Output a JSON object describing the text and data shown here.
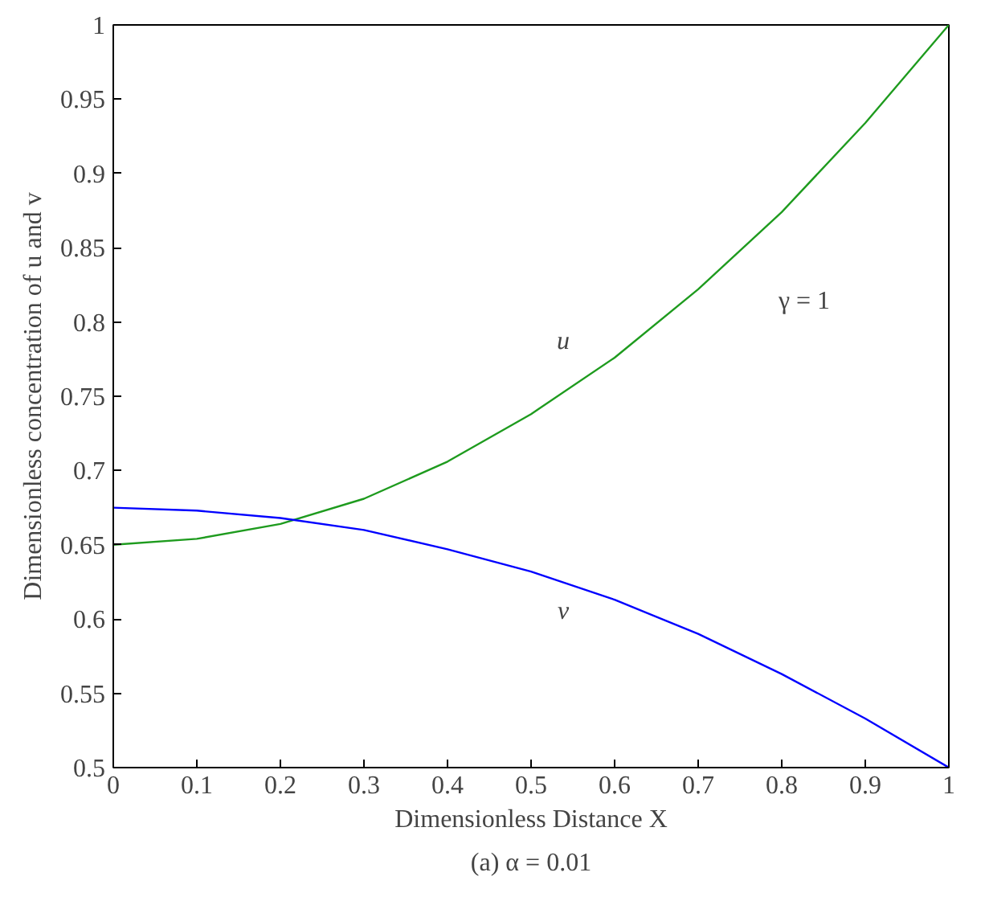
{
  "chart_data": {
    "type": "line",
    "xlabel": "Dimensionless Distance X",
    "ylabel": "Dimensionless concentration of u and v",
    "x": [
      0,
      0.1,
      0.2,
      0.3,
      0.4,
      0.5,
      0.6,
      0.7,
      0.8,
      0.9,
      1
    ],
    "series": [
      {
        "name": "u",
        "color": "#1e9b1e",
        "values": [
          0.65,
          0.654,
          0.664,
          0.681,
          0.706,
          0.738,
          0.776,
          0.822,
          0.874,
          0.934,
          1.0
        ]
      },
      {
        "name": "v",
        "color": "#0000ff",
        "values": [
          0.675,
          0.673,
          0.668,
          0.66,
          0.647,
          0.632,
          0.613,
          0.59,
          0.563,
          0.533,
          0.5
        ]
      }
    ],
    "annotations": [
      "γ = 1",
      "(a) α = 0.01"
    ],
    "xlim": [
      0,
      1
    ],
    "ylim": [
      0.5,
      1
    ],
    "xticks": [
      0,
      0.1,
      0.2,
      0.3,
      0.4,
      0.5,
      0.6,
      0.7,
      0.8,
      0.9,
      1
    ],
    "yticks": [
      0.5,
      0.55,
      0.6,
      0.65,
      0.7,
      0.75,
      0.8,
      0.85,
      0.9,
      0.95,
      1
    ],
    "grid": false,
    "marker": "none",
    "line_style": "solid"
  }
}
